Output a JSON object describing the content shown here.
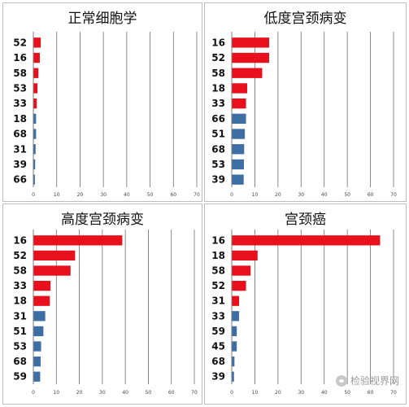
{
  "chart_data": [
    {
      "type": "bar",
      "orientation": "horizontal",
      "title": "正常细胞学",
      "categories": [
        "52",
        "16",
        "58",
        "53",
        "33",
        "18",
        "68",
        "31",
        "39",
        "66"
      ],
      "values": [
        3,
        2.6,
        2,
        1.6,
        1.3,
        1,
        1,
        0.8,
        0.6,
        0.5
      ],
      "colors": [
        "#e8101c",
        "#e8101c",
        "#e8101c",
        "#e8101c",
        "#e8101c",
        "#3d6fa5",
        "#3d6fa5",
        "#3d6fa5",
        "#3d6fa5",
        "#3d6fa5"
      ],
      "xlim": [
        0,
        70
      ],
      "xticks": [
        "0",
        "10",
        "20",
        "30",
        "40",
        "50",
        "60",
        "70"
      ],
      "grid": true
    },
    {
      "type": "bar",
      "orientation": "horizontal",
      "title": "低度宫颈病变",
      "categories": [
        "16",
        "52",
        "58",
        "18",
        "33",
        "66",
        "51",
        "68",
        "53",
        "39"
      ],
      "values": [
        16,
        16,
        13,
        6.5,
        6,
        6,
        5.5,
        5.2,
        5.1,
        5
      ],
      "colors": [
        "#e8101c",
        "#e8101c",
        "#e8101c",
        "#e8101c",
        "#e8101c",
        "#3d6fa5",
        "#3d6fa5",
        "#3d6fa5",
        "#3d6fa5",
        "#3d6fa5"
      ],
      "xlim": [
        0,
        70
      ],
      "xticks": [
        "0",
        "10",
        "20",
        "30",
        "40",
        "50",
        "60",
        "70"
      ],
      "grid": true
    },
    {
      "type": "bar",
      "orientation": "horizontal",
      "title": "高度宫颈病变",
      "categories": [
        "16",
        "52",
        "58",
        "33",
        "18",
        "31",
        "51",
        "53",
        "68",
        "59"
      ],
      "values": [
        38.5,
        18,
        16,
        7.3,
        7,
        5,
        4.2,
        3.2,
        3,
        2.8
      ],
      "colors": [
        "#e8101c",
        "#e8101c",
        "#e8101c",
        "#e8101c",
        "#e8101c",
        "#3d6fa5",
        "#3d6fa5",
        "#3d6fa5",
        "#3d6fa5",
        "#3d6fa5"
      ],
      "xlim": [
        0,
        70
      ],
      "xticks": [
        "0",
        "10",
        "20",
        "30",
        "40",
        "50",
        "60",
        "70"
      ],
      "grid": true
    },
    {
      "type": "bar",
      "orientation": "horizontal",
      "title": "宫颈癌",
      "categories": [
        "16",
        "18",
        "58",
        "52",
        "31",
        "33",
        "59",
        "45",
        "68",
        "39"
      ],
      "values": [
        64,
        11,
        8,
        6,
        3,
        3,
        2,
        2,
        1,
        0.8
      ],
      "colors": [
        "#e8101c",
        "#e8101c",
        "#e8101c",
        "#e8101c",
        "#e8101c",
        "#3d6fa5",
        "#3d6fa5",
        "#3d6fa5",
        "#3d6fa5",
        "#3d6fa5"
      ],
      "xlim": [
        0,
        70
      ],
      "xticks": [
        "0",
        "10",
        "20",
        "30",
        "40",
        "50",
        "60",
        "70"
      ],
      "grid": true
    }
  ],
  "watermark": {
    "text": "检验视界网",
    "icon": "wechat-icon"
  }
}
